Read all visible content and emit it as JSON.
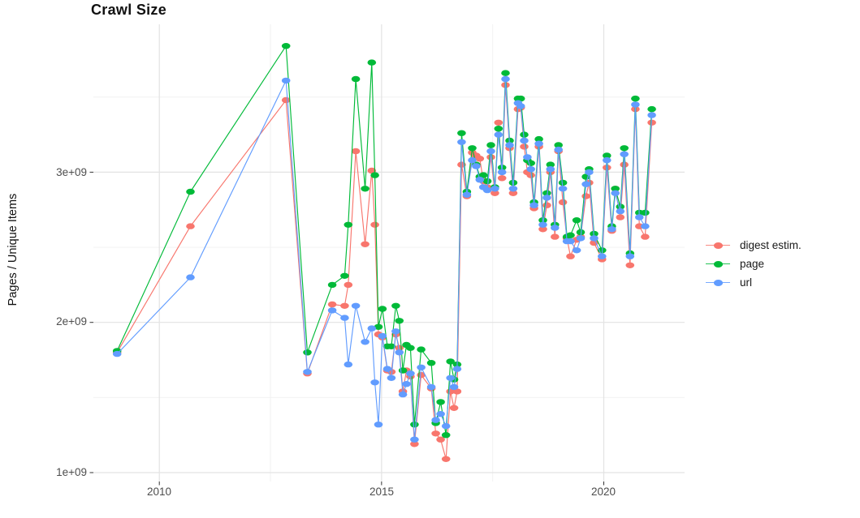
{
  "title": "Crawl Size",
  "axes": {
    "y": {
      "label": "Pages / Unique Items",
      "ticks": [
        {
          "value_e9": 1.0,
          "label": "1e+09"
        },
        {
          "value_e9": 2.0,
          "label": "2e+09"
        },
        {
          "value_e9": 3.0,
          "label": "3e+09"
        }
      ],
      "minor_e9": [
        1.5,
        2.5,
        3.5
      ]
    },
    "x": {
      "ticks": [
        {
          "value": 2010,
          "label": "2010"
        },
        {
          "value": 2015,
          "label": "2015"
        },
        {
          "value": 2020,
          "label": "2020"
        }
      ],
      "minor": [
        2012.5,
        2017.5
      ]
    }
  },
  "legend": {
    "items": [
      {
        "label": "digest estim.",
        "color": "#F8766D"
      },
      {
        "label": "page",
        "color": "#00BA38"
      },
      {
        "label": "url",
        "color": "#619CFF"
      }
    ]
  },
  "panel": {
    "background": "#ffffff",
    "grid_major_color": "#e3e3e3",
    "grid_minor_color": "#f0f0f0",
    "tick_mark_color": "#333333"
  },
  "chart_data": {
    "type": "line",
    "title": "Crawl Size",
    "xlabel": "",
    "ylabel": "Pages / Unique Items",
    "values_unit": "1e9 items (billions)",
    "x_unit": "decimal year (crawl date)",
    "xlim": [
      2008.5,
      2021.8
    ],
    "ylim_e9": [
      0.94,
      3.99
    ],
    "grid": true,
    "legend_position": "right",
    "x": [
      2009.05,
      2010.7,
      2012.85,
      2013.33,
      2013.89,
      2014.17,
      2014.25,
      2014.42,
      2014.63,
      2014.78,
      2014.85,
      2014.93,
      2015.02,
      2015.13,
      2015.22,
      2015.32,
      2015.4,
      2015.48,
      2015.56,
      2015.65,
      2015.74,
      2015.89,
      2016.12,
      2016.22,
      2016.33,
      2016.45,
      2016.55,
      2016.63,
      2016.7,
      2016.8,
      2016.92,
      2017.04,
      2017.13,
      2017.21,
      2017.29,
      2017.38,
      2017.46,
      2017.55,
      2017.63,
      2017.71,
      2017.79,
      2017.88,
      2017.96,
      2018.07,
      2018.13,
      2018.21,
      2018.28,
      2018.36,
      2018.43,
      2018.54,
      2018.63,
      2018.72,
      2018.8,
      2018.9,
      2018.98,
      2019.08,
      2019.17,
      2019.25,
      2019.39,
      2019.48,
      2019.6,
      2019.67,
      2019.78,
      2019.96,
      2020.07,
      2020.18,
      2020.26,
      2020.37,
      2020.46,
      2020.59,
      2020.71,
      2020.8,
      2020.93,
      2021.08
    ],
    "series": [
      {
        "name": "digest estim.",
        "color": "#F8766D",
        "values_e9": [
          1.8,
          2.64,
          3.48,
          1.66,
          2.12,
          2.11,
          2.25,
          3.14,
          2.52,
          3.01,
          2.65,
          1.92,
          1.9,
          1.68,
          1.67,
          1.92,
          1.83,
          1.54,
          1.68,
          1.64,
          1.19,
          1.65,
          1.56,
          1.26,
          1.22,
          1.09,
          1.54,
          1.43,
          1.54,
          3.05,
          2.84,
          3.13,
          3.11,
          3.09,
          2.94,
          2.9,
          3.1,
          2.86,
          3.33,
          2.96,
          3.58,
          3.16,
          2.86,
          3.42,
          3.43,
          3.17,
          3.0,
          2.98,
          2.76,
          3.17,
          2.62,
          2.78,
          3.0,
          2.57,
          3.14,
          2.8,
          2.56,
          2.44,
          2.55,
          2.57,
          2.84,
          2.93,
          2.53,
          2.42,
          3.03,
          2.61,
          2.89,
          2.7,
          3.05,
          2.38,
          3.42,
          2.64,
          2.57,
          3.33
        ]
      },
      {
        "name": "page",
        "color": "#00BA38",
        "values_e9": [
          1.81,
          2.87,
          3.84,
          1.8,
          2.25,
          2.31,
          2.65,
          3.62,
          2.89,
          3.73,
          2.98,
          1.97,
          2.09,
          1.84,
          1.84,
          2.11,
          2.01,
          1.68,
          1.85,
          1.83,
          1.32,
          1.82,
          1.73,
          1.33,
          1.47,
          1.25,
          1.74,
          1.62,
          1.72,
          3.26,
          2.87,
          3.16,
          3.05,
          2.97,
          2.98,
          2.94,
          3.18,
          2.9,
          3.29,
          3.03,
          3.66,
          3.21,
          2.93,
          3.49,
          3.49,
          3.25,
          3.08,
          3.06,
          2.8,
          3.22,
          2.68,
          2.86,
          3.05,
          2.65,
          3.18,
          2.93,
          2.57,
          2.58,
          2.68,
          2.6,
          2.97,
          3.02,
          2.59,
          2.48,
          3.11,
          2.64,
          2.89,
          2.77,
          3.16,
          2.46,
          3.49,
          2.73,
          2.73,
          3.42
        ]
      },
      {
        "name": "url",
        "color": "#619CFF",
        "values_e9": [
          1.79,
          2.3,
          3.61,
          1.67,
          2.08,
          2.03,
          1.72,
          2.11,
          1.87,
          1.96,
          1.6,
          1.32,
          1.91,
          1.69,
          1.63,
          1.94,
          1.8,
          1.52,
          1.59,
          1.66,
          1.22,
          1.7,
          1.57,
          1.35,
          1.39,
          1.31,
          1.63,
          1.57,
          1.69,
          3.2,
          2.85,
          3.08,
          3.04,
          2.95,
          2.9,
          2.88,
          3.14,
          2.89,
          3.25,
          3.0,
          3.62,
          3.18,
          2.89,
          3.46,
          3.44,
          3.21,
          3.1,
          3.02,
          2.78,
          3.19,
          2.65,
          2.83,
          3.02,
          2.63,
          3.15,
          2.89,
          2.54,
          2.54,
          2.48,
          2.56,
          2.92,
          3.0,
          2.56,
          2.44,
          3.08,
          2.62,
          2.86,
          2.74,
          3.12,
          2.44,
          3.45,
          2.7,
          2.64,
          3.38
        ]
      }
    ]
  }
}
